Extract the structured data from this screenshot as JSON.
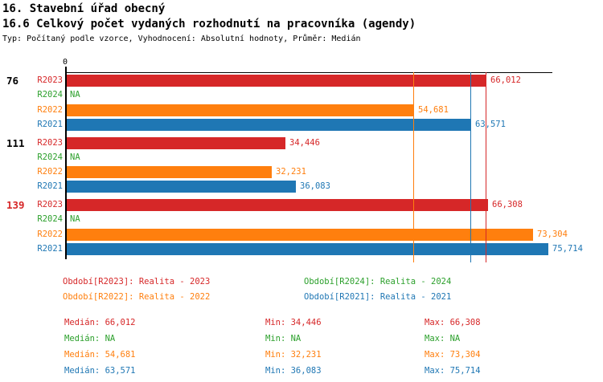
{
  "header": {
    "title": "16. Stavební úřad obecný",
    "subtitle": "16.6 Celkový počet vydaných rozhodnutí na pracovníka (agendy)",
    "meta": "Typ: Počítaný podle vzorce, Vyhodnocení: Absolutní hodnoty, Průměr: Medián"
  },
  "chart_data": {
    "type": "bar",
    "orientation": "horizontal",
    "title": "16.6 Celkový počet vydaných rozhodnutí na pracovníka (agendy)",
    "axis": {
      "origin_label": "0",
      "min": 0,
      "max_estimate": 76500,
      "grid": "median-lines-only"
    },
    "colors": {
      "R2023": "#d62728",
      "R2024": "#2ca02c",
      "R2022": "#ff7f0e",
      "R2021": "#1f77b4",
      "axis": "#000000",
      "black_label": "#000000"
    },
    "series_order": [
      "R2023",
      "R2024",
      "R2022",
      "R2021"
    ],
    "groups": [
      {
        "label": "76",
        "label_color": "#000000",
        "bars": [
          {
            "series": "R2023",
            "value": 66012,
            "display": "66,012"
          },
          {
            "series": "R2024",
            "value": null,
            "display": "NA"
          },
          {
            "series": "R2022",
            "value": 54681,
            "display": "54,681"
          },
          {
            "series": "R2021",
            "value": 63571,
            "display": "63,571"
          }
        ]
      },
      {
        "label": "111",
        "label_color": "#000000",
        "bars": [
          {
            "series": "R2023",
            "value": 34446,
            "display": "34,446"
          },
          {
            "series": "R2024",
            "value": null,
            "display": "NA"
          },
          {
            "series": "R2022",
            "value": 32231,
            "display": "32,231"
          },
          {
            "series": "R2021",
            "value": 36083,
            "display": "36,083"
          }
        ]
      },
      {
        "label": "139",
        "label_color": "#d62728",
        "bars": [
          {
            "series": "R2023",
            "value": 66308,
            "display": "66,308"
          },
          {
            "series": "R2024",
            "value": null,
            "display": "NA"
          },
          {
            "series": "R2022",
            "value": 73304,
            "display": "73,304"
          },
          {
            "series": "R2021",
            "value": 75714,
            "display": "75,714"
          }
        ]
      }
    ],
    "median_gridlines": [
      {
        "series": "R2022",
        "value": 54681,
        "color": "#ff7f0e"
      },
      {
        "series": "R2021",
        "value": 63571,
        "color": "#1f77b4"
      },
      {
        "series": "R2023",
        "value": 66012,
        "color": "#d62728"
      }
    ],
    "legend": [
      {
        "series": "R2023",
        "text": "Období[R2023]: Realita - 2023",
        "color": "#d62728"
      },
      {
        "series": "R2024",
        "text": "Období[R2024]: Realita - 2024",
        "color": "#2ca02c"
      },
      {
        "series": "R2022",
        "text": "Období[R2022]: Realita - 2022",
        "color": "#ff7f0e"
      },
      {
        "series": "R2021",
        "text": "Období[R2021]: Realita - 2021",
        "color": "#1f77b4"
      }
    ],
    "stats": [
      {
        "series": "R2023",
        "color": "#d62728",
        "cells": [
          "Medián: 66,012",
          "Min: 34,446",
          "Max: 66,308"
        ]
      },
      {
        "series": "R2024",
        "color": "#2ca02c",
        "cells": [
          "Medián: NA",
          "Min: NA",
          "Max: NA"
        ]
      },
      {
        "series": "R2022",
        "color": "#ff7f0e",
        "cells": [
          "Medián: 54,681",
          "Min: 32,231",
          "Max: 73,304"
        ]
      },
      {
        "series": "R2021",
        "color": "#1f77b4",
        "cells": [
          "Medián: 63,571",
          "Min: 36,083",
          "Max: 75,714"
        ]
      }
    ]
  }
}
